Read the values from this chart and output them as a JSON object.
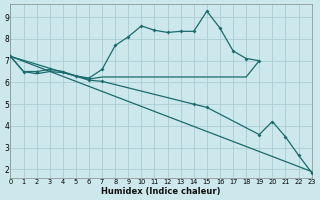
{
  "xlabel": "Humidex (Indice chaleur)",
  "bg_color": "#cce8ec",
  "grid_color": "#aacdd4",
  "line_color": "#1a6b6b",
  "xlim": [
    0,
    23
  ],
  "ylim": [
    1.6,
    9.6
  ],
  "xtick_vals": [
    0,
    1,
    2,
    3,
    4,
    5,
    6,
    7,
    8,
    9,
    10,
    11,
    12,
    13,
    14,
    15,
    16,
    17,
    18,
    19,
    20,
    21,
    22,
    23
  ],
  "ytick_vals": [
    2,
    3,
    4,
    5,
    6,
    7,
    8,
    9
  ],
  "line1_x": [
    0,
    1,
    2,
    3,
    4,
    5,
    6,
    7,
    8,
    9,
    10,
    11,
    12,
    13,
    14,
    15,
    16,
    17,
    18,
    19
  ],
  "line1_y": [
    7.2,
    6.5,
    6.5,
    6.6,
    6.5,
    6.3,
    6.2,
    6.6,
    7.7,
    8.1,
    8.6,
    8.4,
    8.3,
    8.35,
    8.35,
    9.28,
    8.5,
    7.45,
    7.1,
    7.0
  ],
  "line2_x": [
    0,
    1,
    2,
    3,
    4,
    5,
    6,
    7,
    8,
    9,
    10,
    11,
    12,
    13,
    14,
    15,
    16,
    17,
    18,
    19
  ],
  "line2_y": [
    7.2,
    6.5,
    6.4,
    6.5,
    6.45,
    6.3,
    6.15,
    6.25,
    6.25,
    6.25,
    6.25,
    6.25,
    6.25,
    6.25,
    6.25,
    6.25,
    6.25,
    6.25,
    6.25,
    7.0
  ],
  "line3_x": [
    0,
    23
  ],
  "line3_y": [
    7.2,
    1.9
  ],
  "line4_x": [
    0,
    6,
    7,
    14,
    15,
    19,
    20,
    21,
    22,
    23
  ],
  "line4_y": [
    7.2,
    6.1,
    6.05,
    5.0,
    4.85,
    3.6,
    4.2,
    3.5,
    2.65,
    1.85
  ]
}
